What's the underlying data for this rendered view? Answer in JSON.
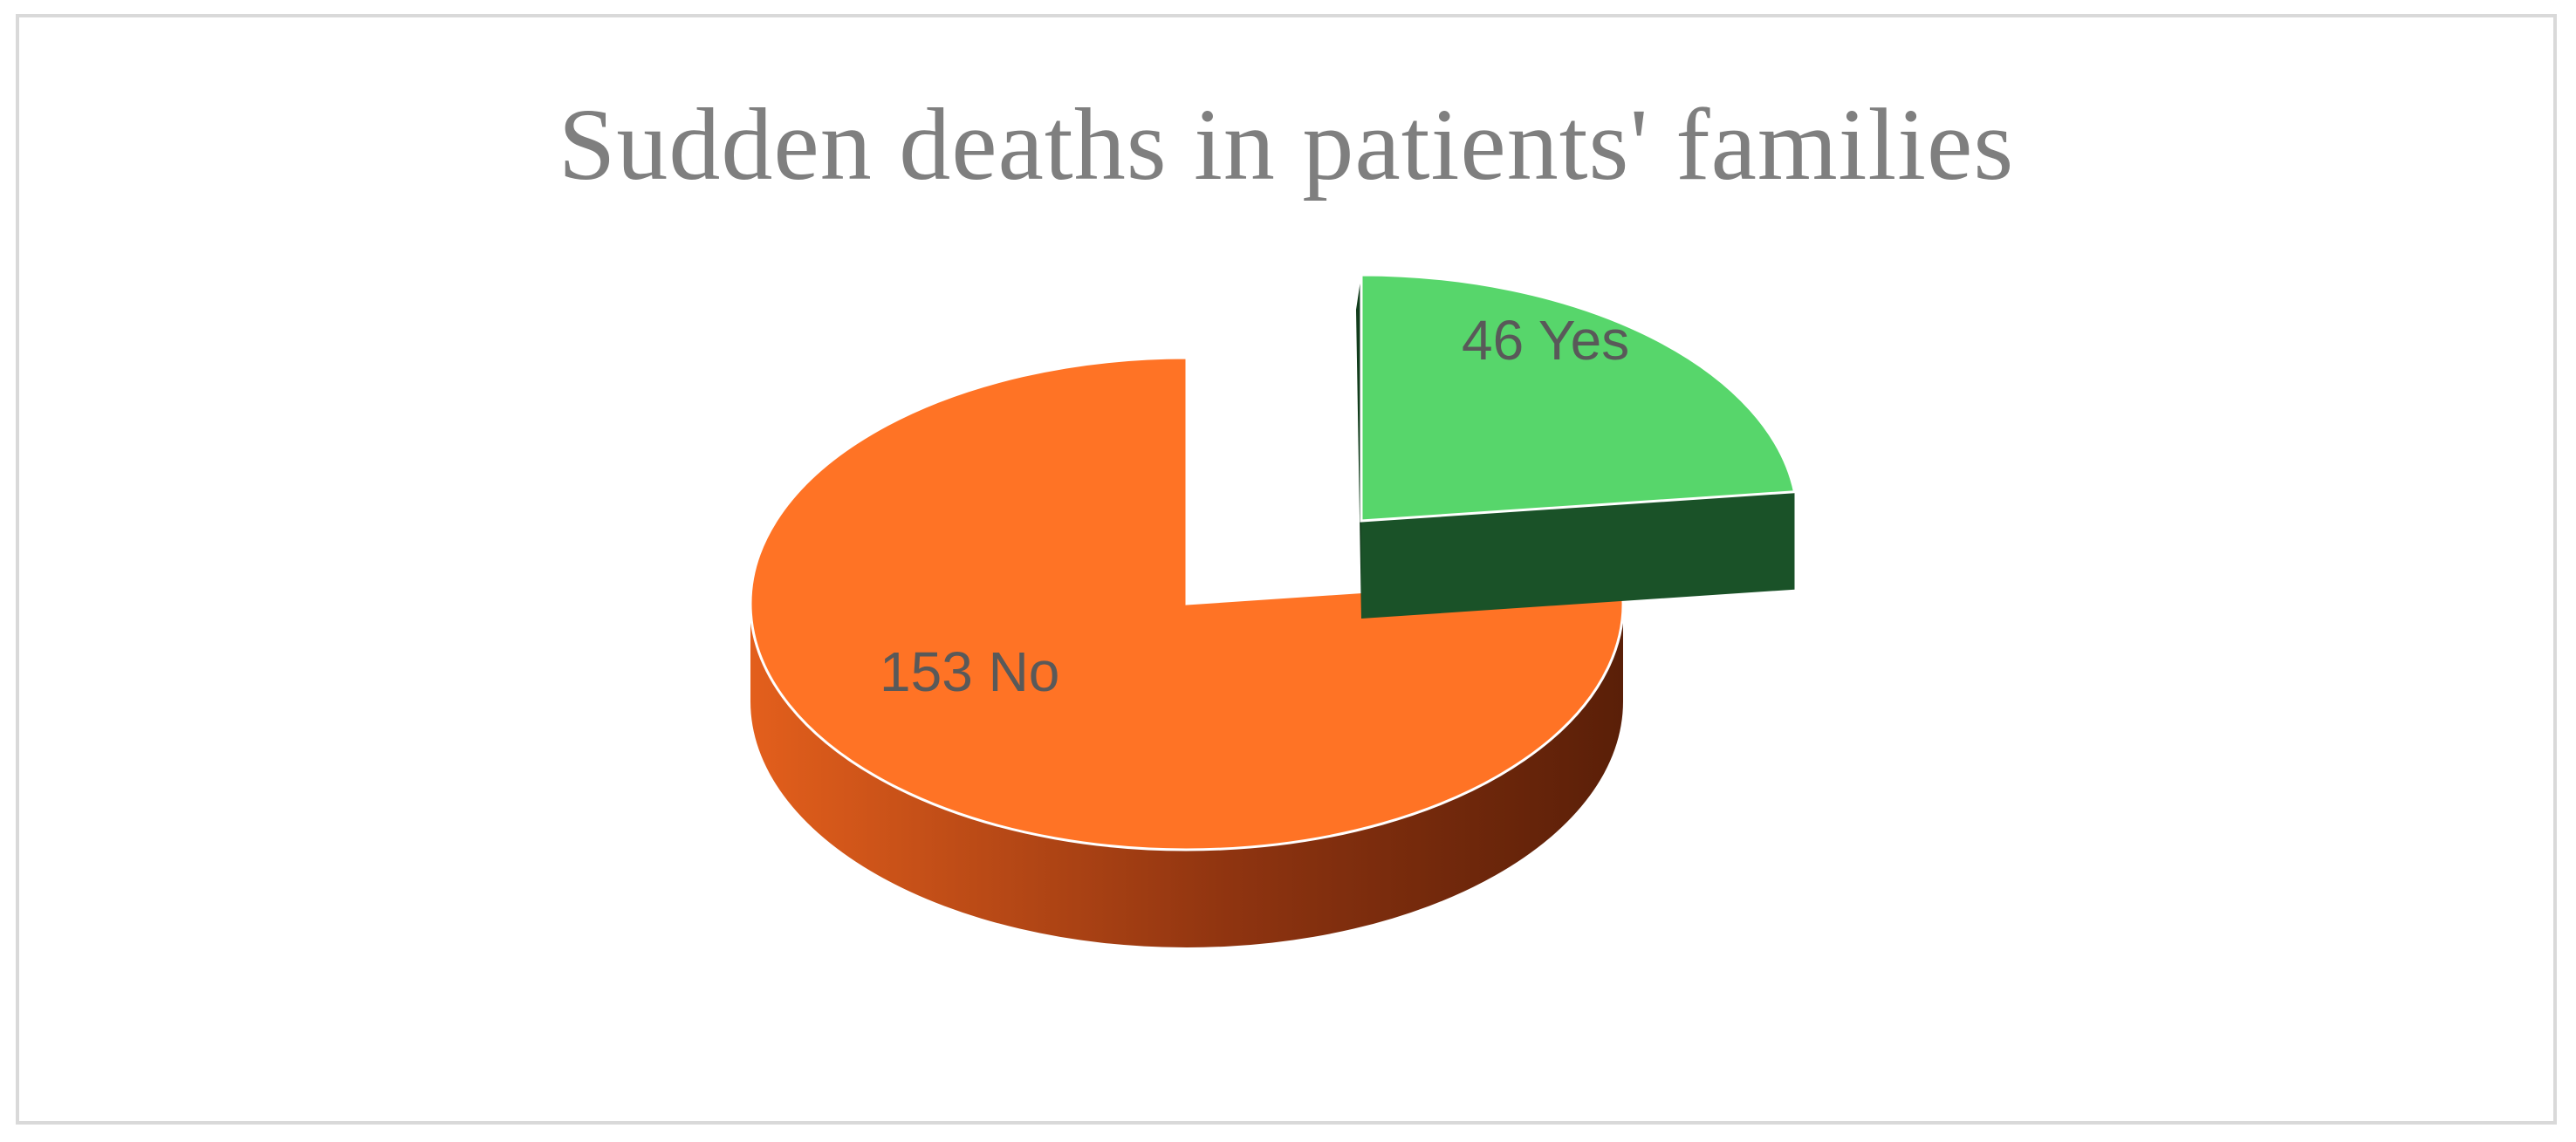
{
  "chart_data": {
    "type": "pie",
    "title": "Sudden deaths in patients' families",
    "categories": [
      "Yes",
      "No"
    ],
    "values": [
      46,
      153
    ],
    "labels": [
      "46 Yes",
      "153 No"
    ],
    "colors": {
      "Yes": {
        "top": "#57d66b",
        "side": "#1a5228"
      },
      "No": {
        "top": "#ff7325",
        "side_light": "#e0601c",
        "side_dark": "#6b250a"
      }
    },
    "exploded_slice": "Yes",
    "style": "3d"
  }
}
